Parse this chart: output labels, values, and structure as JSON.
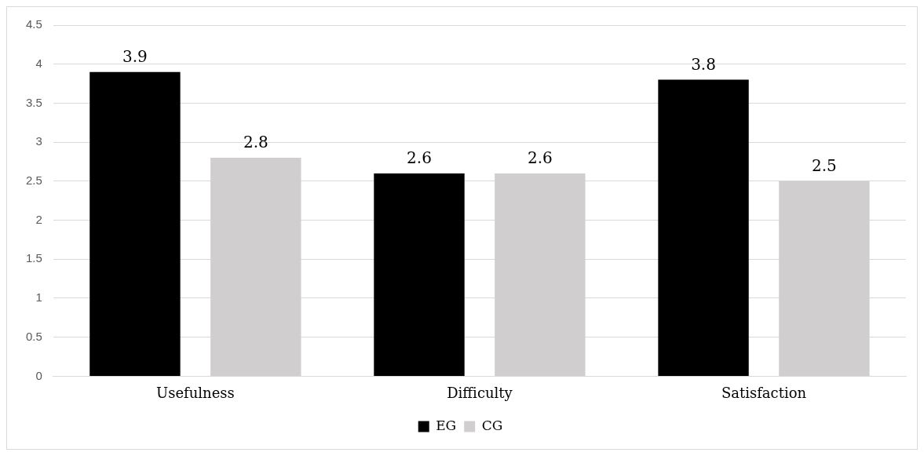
{
  "chart_data": {
    "type": "bar",
    "categories": [
      "Usefulness",
      "Difficulty",
      "Satisfaction"
    ],
    "series": [
      {
        "name": "EG",
        "color": "#000000",
        "values": [
          3.9,
          2.6,
          3.8
        ]
      },
      {
        "name": "CG",
        "color": "#d0cece",
        "values": [
          2.8,
          2.6,
          2.5
        ]
      }
    ],
    "ylim": [
      0,
      4.5
    ],
    "yticks": [
      0,
      0.5,
      1,
      1.5,
      2,
      2.5,
      3,
      3.5,
      4,
      4.5
    ],
    "grid": "y",
    "legend": "bottom",
    "data_labels": true
  }
}
